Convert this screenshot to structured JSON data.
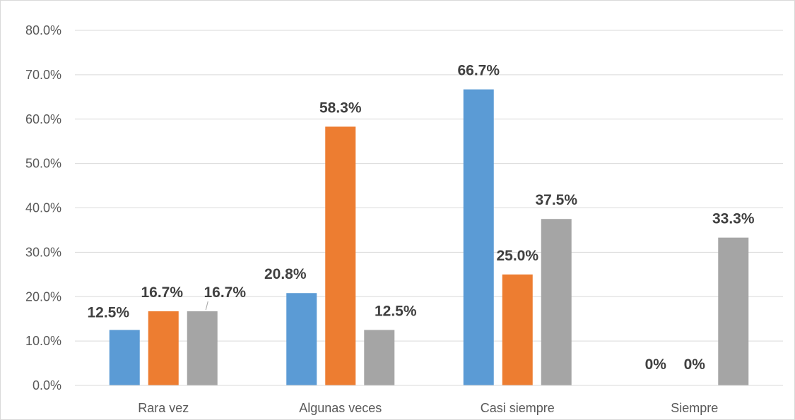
{
  "chart_data": {
    "type": "bar",
    "title": "",
    "xlabel": "",
    "ylabel": "",
    "ylim": [
      0,
      80
    ],
    "ytick_step": 10,
    "ytick_format": "0.0%",
    "grid": true,
    "legend": "none",
    "categories": [
      "Rara vez",
      "Algunas veces",
      "Casi siempre",
      "Siempre"
    ],
    "series": [
      {
        "color": "#5b9bd5",
        "values": [
          12.5,
          20.8,
          66.7,
          0
        ],
        "labels": [
          "12.5%",
          "20.8%",
          "66.7%",
          "0%"
        ]
      },
      {
        "color": "#ed7d31",
        "values": [
          16.7,
          58.3,
          25.0,
          0
        ],
        "labels": [
          "16.7%",
          "58.3%",
          "25.0%",
          "0%"
        ]
      },
      {
        "color": "#a5a5a5",
        "values": [
          16.7,
          12.5,
          37.5,
          33.3
        ],
        "labels": [
          "16.7%",
          "12.5%",
          "37.5%",
          "33.3%"
        ]
      }
    ]
  }
}
